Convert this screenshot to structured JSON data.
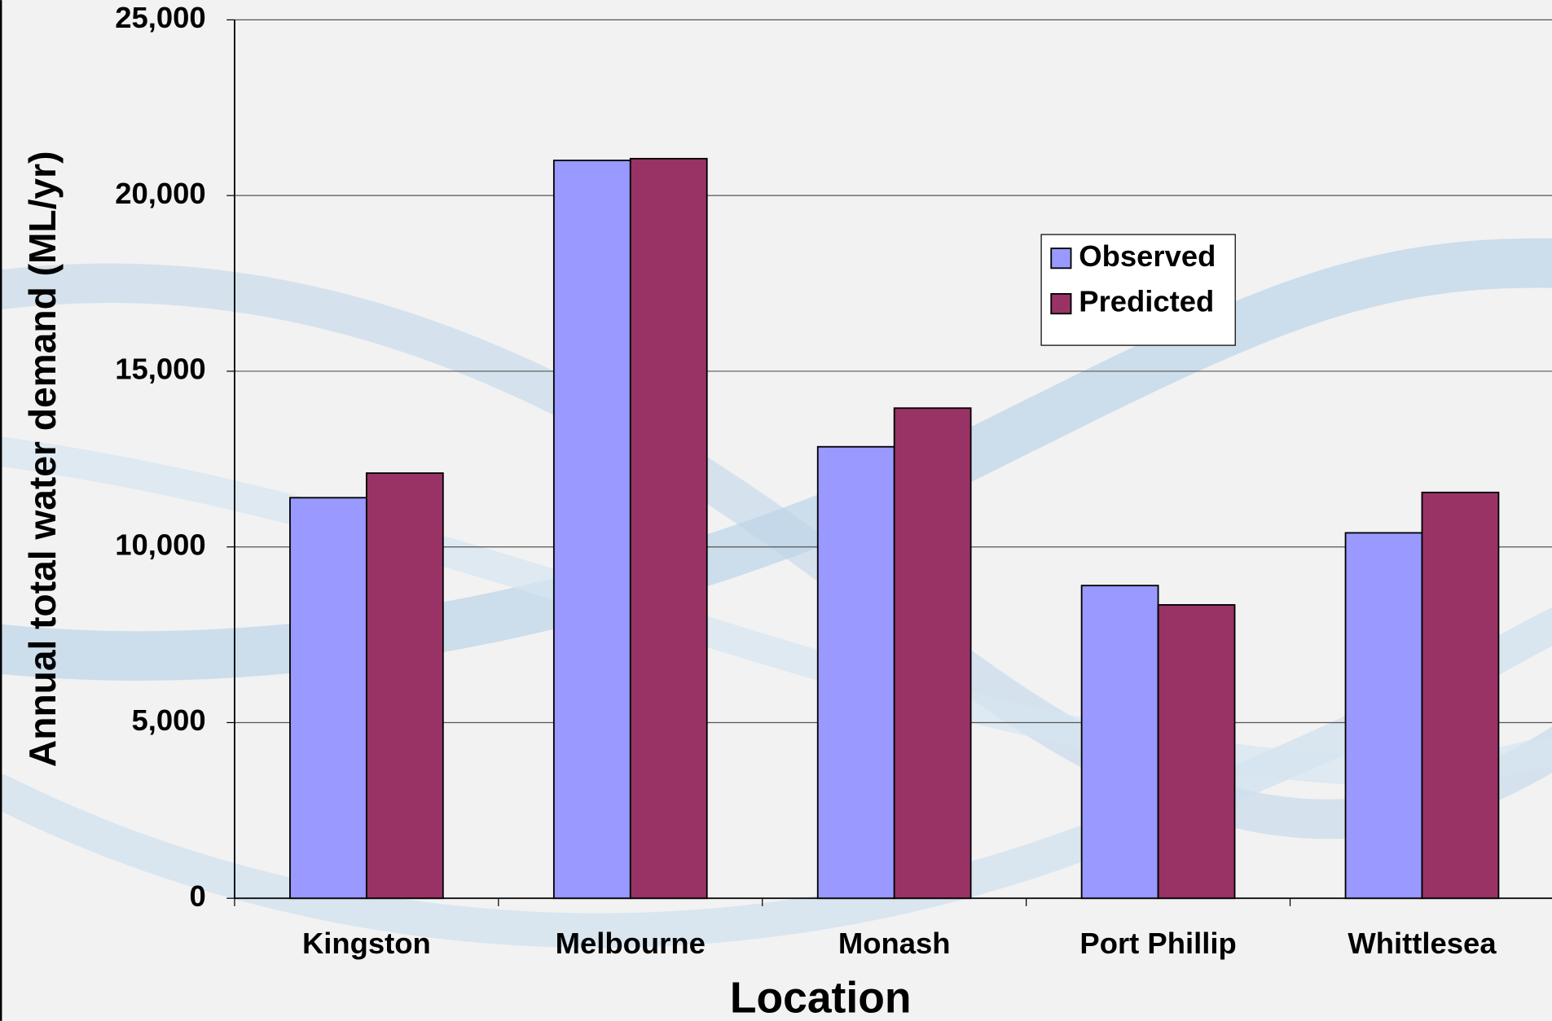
{
  "chart_data": {
    "type": "bar",
    "x_label": "Location",
    "y_label": "Annual total water demand (ML/yr)",
    "categories": [
      "Kingston",
      "Melbourne",
      "Monash",
      "Port Phillip",
      "Whittlesea"
    ],
    "series": [
      {
        "name": "Observed",
        "color": "#9999ff",
        "values": [
          11400,
          21000,
          12850,
          8900,
          10400
        ]
      },
      {
        "name": "Predicted",
        "color": "#993366",
        "values": [
          12100,
          21050,
          13950,
          8350,
          11550
        ]
      }
    ],
    "ylim": [
      0,
      25000
    ],
    "yticks": [
      0,
      {
        "value": 5000,
        "label": "5,000"
      },
      {
        "value": 10000,
        "label": "10,000"
      },
      {
        "value": 15000,
        "label": "15,000"
      },
      {
        "value": 20000,
        "label": "20,000"
      },
      {
        "value": 25000,
        "label": "25,000"
      }
    ],
    "grid": true
  }
}
